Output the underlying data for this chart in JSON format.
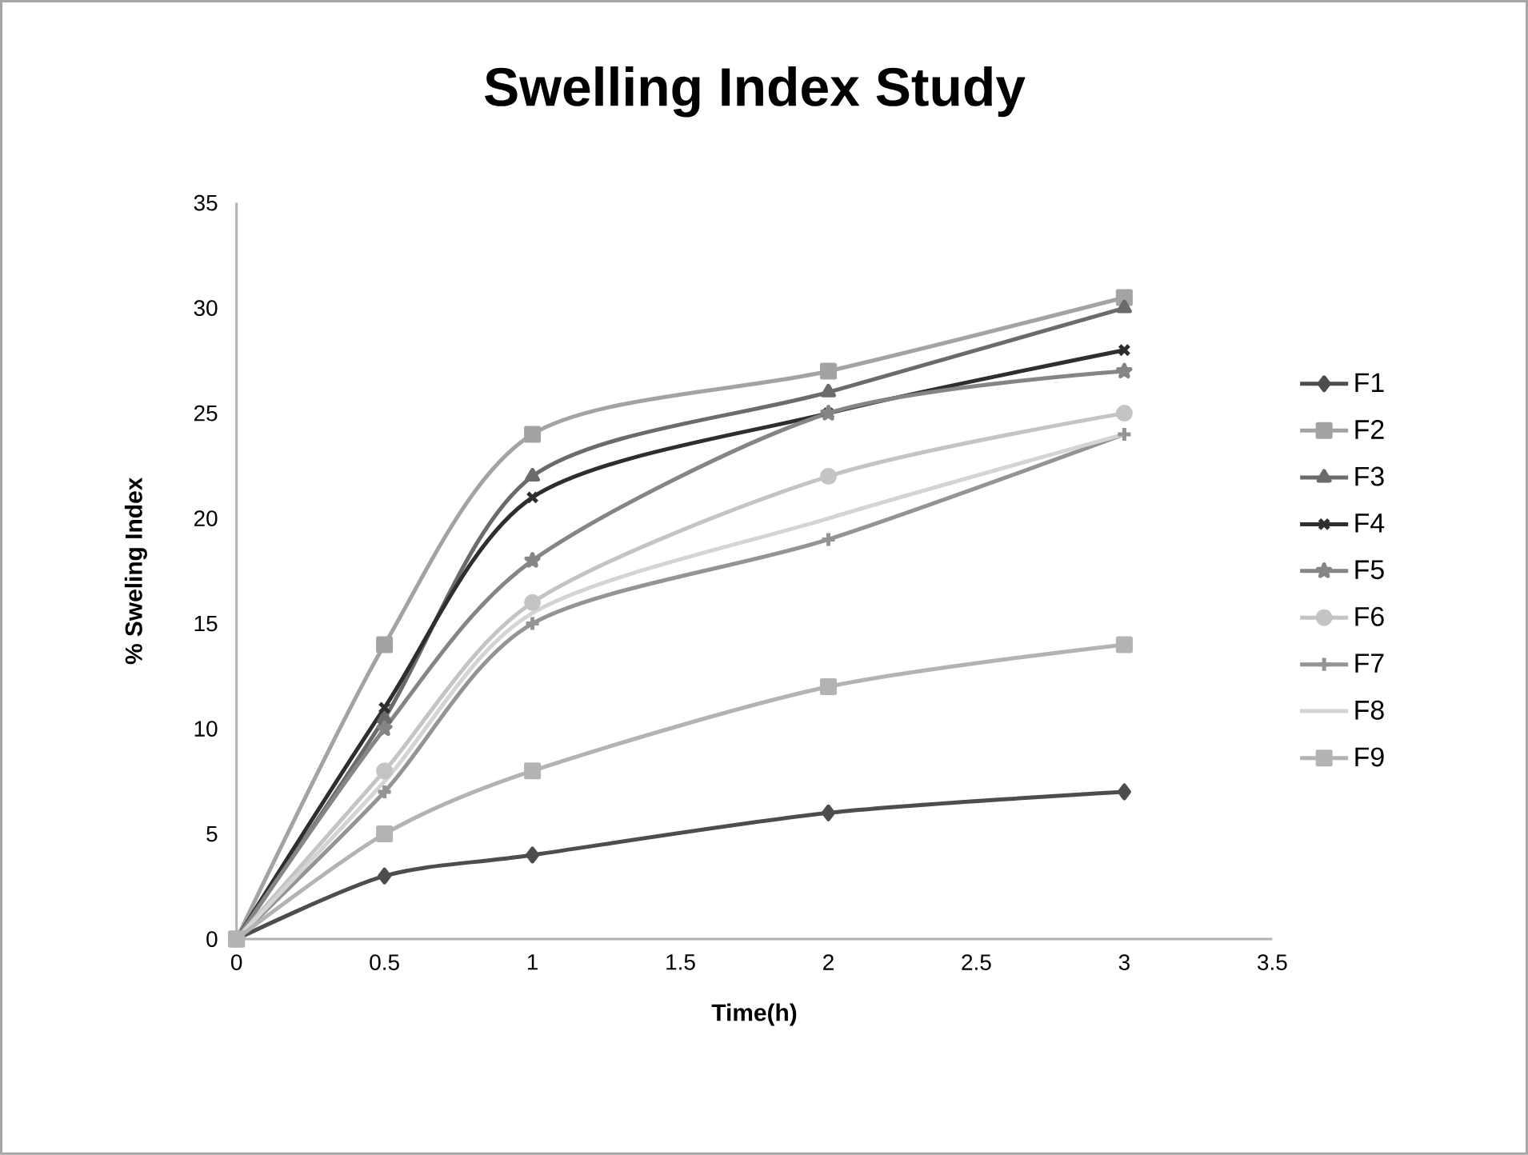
{
  "chart_data": {
    "type": "line",
    "title": "Swelling Index Study",
    "xlabel": "Time(h)",
    "ylabel": "% Sweling Index",
    "x": [
      0,
      0.5,
      1,
      2,
      3
    ],
    "series": [
      {
        "name": "F1",
        "color": "#4d4d4d",
        "marker": "diamond",
        "values": [
          0,
          3,
          4,
          6,
          7
        ]
      },
      {
        "name": "F2",
        "color": "#a3a3a3",
        "marker": "square",
        "values": [
          0,
          14,
          24,
          27,
          30.5
        ]
      },
      {
        "name": "F3",
        "color": "#6b6b6b",
        "marker": "triangle",
        "values": [
          0,
          10.5,
          22,
          26,
          30
        ]
      },
      {
        "name": "F4",
        "color": "#2e2e2e",
        "marker": "cross",
        "values": [
          0,
          11,
          21,
          25,
          28
        ]
      },
      {
        "name": "F5",
        "color": "#858585",
        "marker": "star",
        "values": [
          0,
          10,
          18,
          25,
          27
        ]
      },
      {
        "name": "F6",
        "color": "#c4c4c4",
        "marker": "circle",
        "values": [
          0,
          8,
          16,
          22,
          25
        ]
      },
      {
        "name": "F7",
        "color": "#949494",
        "marker": "plus",
        "values": [
          0,
          7,
          15,
          19,
          24
        ]
      },
      {
        "name": "F8",
        "color": "#d4d4d4",
        "marker": "none",
        "values": [
          0,
          7.5,
          15.5,
          20,
          24
        ]
      },
      {
        "name": "F9",
        "color": "#b3b3b3",
        "marker": "square",
        "values": [
          0,
          5,
          8,
          12,
          14
        ]
      }
    ],
    "xlim": [
      0,
      3.5
    ],
    "xticks": [
      0,
      0.5,
      1,
      1.5,
      2,
      2.5,
      3,
      3.5
    ],
    "ylim": [
      0,
      35
    ],
    "yticks": [
      0,
      5,
      10,
      15,
      20,
      25,
      30,
      35
    ],
    "grid": false,
    "legend": "right",
    "line_style": "solid"
  }
}
